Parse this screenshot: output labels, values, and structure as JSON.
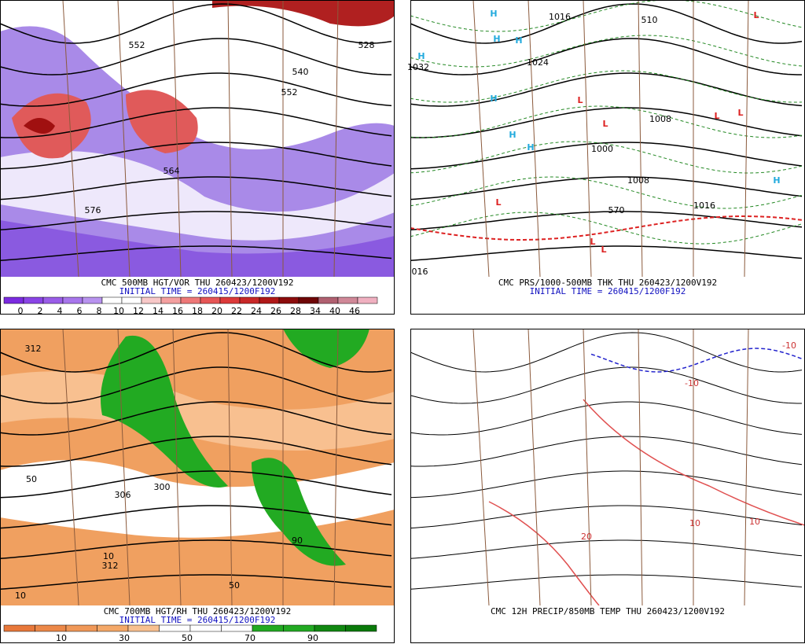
{
  "panels": [
    {
      "title": "CMC 500MB HGT/VOR THU 260423/1200V192",
      "subtitle": "INITIAL TIME = 260415/1200F192",
      "colorbar": {
        "labels": [
          "0",
          "2",
          "4",
          "6",
          "8",
          "10",
          "12",
          "14",
          "16",
          "18",
          "20",
          "22",
          "24",
          "26",
          "28",
          "34",
          "40",
          "46"
        ],
        "colors": [
          "#7b2be0",
          "#8a44e6",
          "#9a5de8",
          "#a876ec",
          "#b893ef",
          "#ffffff",
          "#ffffff",
          "#f8c8c8",
          "#f4a0a0",
          "#ee7878",
          "#e65656",
          "#dc3a3a",
          "#c82828",
          "#b01818",
          "#8c0c0c",
          "#6e0606",
          "#b06070",
          "#d08898",
          "#f0b0c0"
        ]
      },
      "labels": [
        "552",
        "540",
        "552",
        "564",
        "576",
        "528"
      ]
    },
    {
      "title": "CMC PRS/1000-500MB THK THU 260423/1200V192",
      "subtitle": "INITIAL TIME = 260415/1200F192",
      "labels": [
        "H",
        "H",
        "H",
        "H",
        "H",
        "H",
        "H",
        "H",
        "L",
        "L",
        "L",
        "L",
        "L",
        "L",
        "L",
        "L",
        "1032",
        "1024",
        "1016",
        "1008",
        "1000",
        "1008",
        "1016",
        "016",
        "510",
        "570"
      ]
    },
    {
      "title": "CMC 700MB HGT/RH THU 260423/1200V192",
      "subtitle": "INITIAL TIME = 260415/1200F192",
      "colorbar": {
        "labels": [
          "10",
          "30",
          "50",
          "70",
          "90"
        ],
        "colors": [
          "#e8783a",
          "#ec8848",
          "#f09858",
          "#f4a868",
          "#f8c090",
          "#ffffff",
          "#ffffff",
          "#ffffff",
          "#22aa22",
          "#22aa22",
          "#118811",
          "#0a7a0a"
        ]
      },
      "labels": [
        "312",
        "306",
        "300",
        "312",
        "10",
        "50",
        "90",
        "50",
        "10"
      ]
    },
    {
      "title": "CMC 12H PRECIP/850MB TEMP THU 260423/1200V192",
      "labels": [
        "-10",
        "10",
        "20",
        "-10",
        "10"
      ]
    }
  ]
}
